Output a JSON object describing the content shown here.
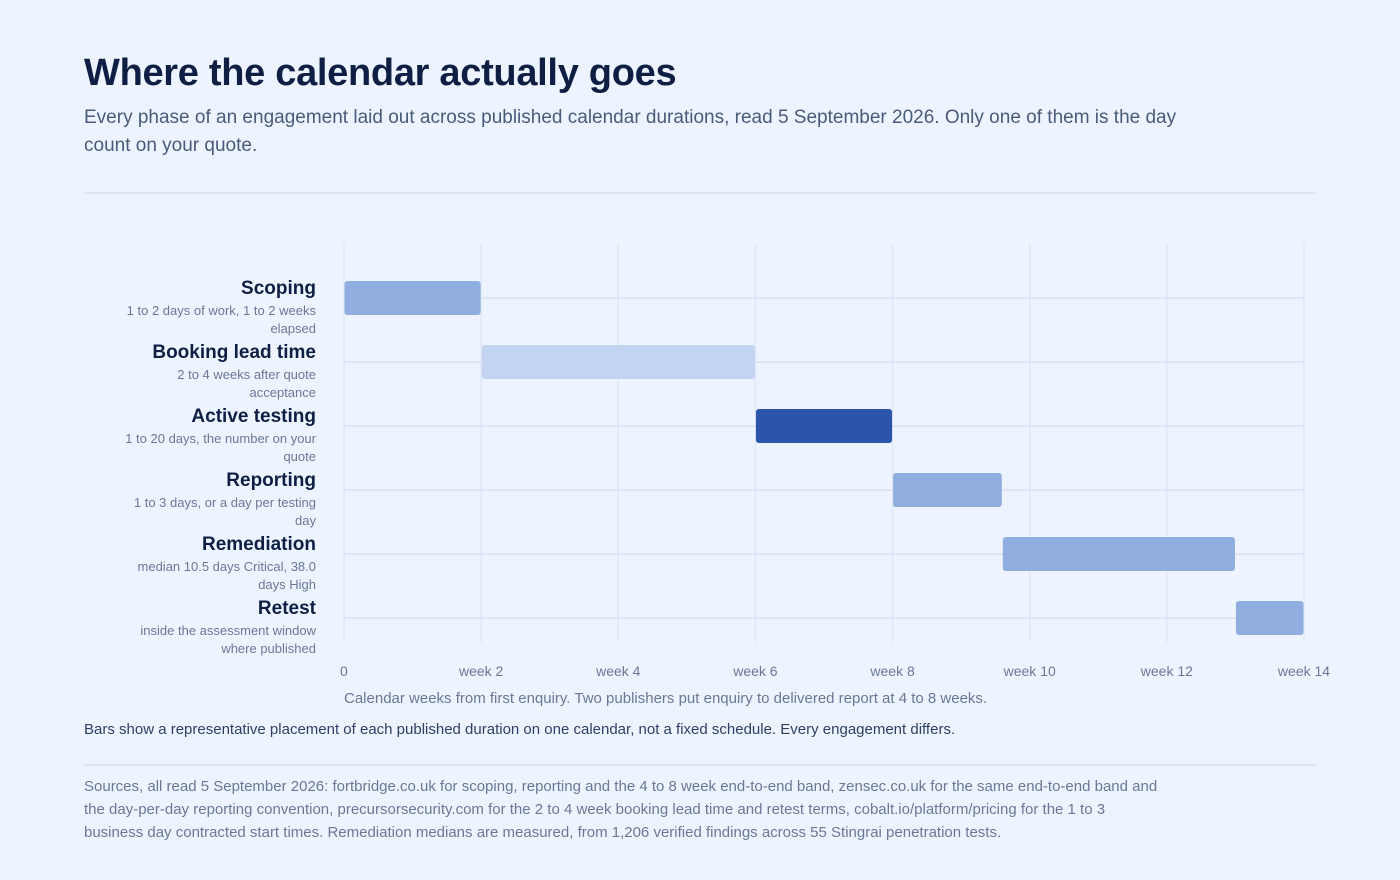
{
  "title": "Where the calendar actually goes",
  "subtitle": "Every phase of an engagement laid out across published calendar durations, read 5 September 2026. Only one of them is the day count on your quote.",
  "caption": "Calendar weeks from first enquiry. Two publishers put enquiry to delivered report at 4 to 8 weeks.",
  "note": "Bars show a representative placement of each published duration on one calendar, not a fixed schedule. Every engagement differs.",
  "sources": "Sources, all read 5 September 2026: fortbridge.co.uk for scoping, reporting and the 4 to 8 week end-to-end band, zensec.co.uk for the same end-to-end band and the day-per-day reporting convention, precursorsecurity.com for the 2 to 4 week booking lead time and retest terms, cobalt.io/platform/pricing for the 1 to 3 business day contracted start times. Remediation medians are measured, from 1,206 verified findings across 55 Stingrai penetration tests.",
  "colors": {
    "light": "#8fadde",
    "pale": "#c3d4f0",
    "dark": "#2b55ab",
    "grid": "#dce6f6"
  },
  "chart_data": {
    "type": "bar",
    "orientation": "horizontal-gantt",
    "xlim": [
      0,
      14
    ],
    "x_ticks": [
      {
        "value": 0,
        "label": "0"
      },
      {
        "value": 2,
        "label": "week 2"
      },
      {
        "value": 4,
        "label": "week 4"
      },
      {
        "value": 6,
        "label": "week 6"
      },
      {
        "value": 8,
        "label": "week 8"
      },
      {
        "value": 10,
        "label": "week 10"
      },
      {
        "value": 12,
        "label": "week 12"
      },
      {
        "value": 14,
        "label": "week 14"
      }
    ],
    "grid": true,
    "rows": [
      {
        "label": "Scoping",
        "detail": [
          "1 to 2 days of work, 1 to 2 weeks",
          "elapsed"
        ],
        "start": 0,
        "end": 2,
        "color": "light"
      },
      {
        "label": "Booking lead time",
        "detail": [
          "2 to 4 weeks after quote",
          "acceptance"
        ],
        "start": 2,
        "end": 6,
        "color": "pale"
      },
      {
        "label": "Active testing",
        "detail": [
          "1 to 20 days, the number on your",
          "quote"
        ],
        "start": 6,
        "end": 8,
        "color": "dark"
      },
      {
        "label": "Reporting",
        "detail": [
          "1 to 3 days, or a day per testing",
          "day"
        ],
        "start": 8,
        "end": 9.6,
        "color": "light"
      },
      {
        "label": "Remediation",
        "detail": [
          "median 10.5 days Critical, 38.0",
          "days High"
        ],
        "start": 9.6,
        "end": 13,
        "color": "light"
      },
      {
        "label": "Retest",
        "detail": [
          "inside the assessment window",
          "where published"
        ],
        "start": 13,
        "end": 14,
        "color": "light"
      }
    ]
  }
}
